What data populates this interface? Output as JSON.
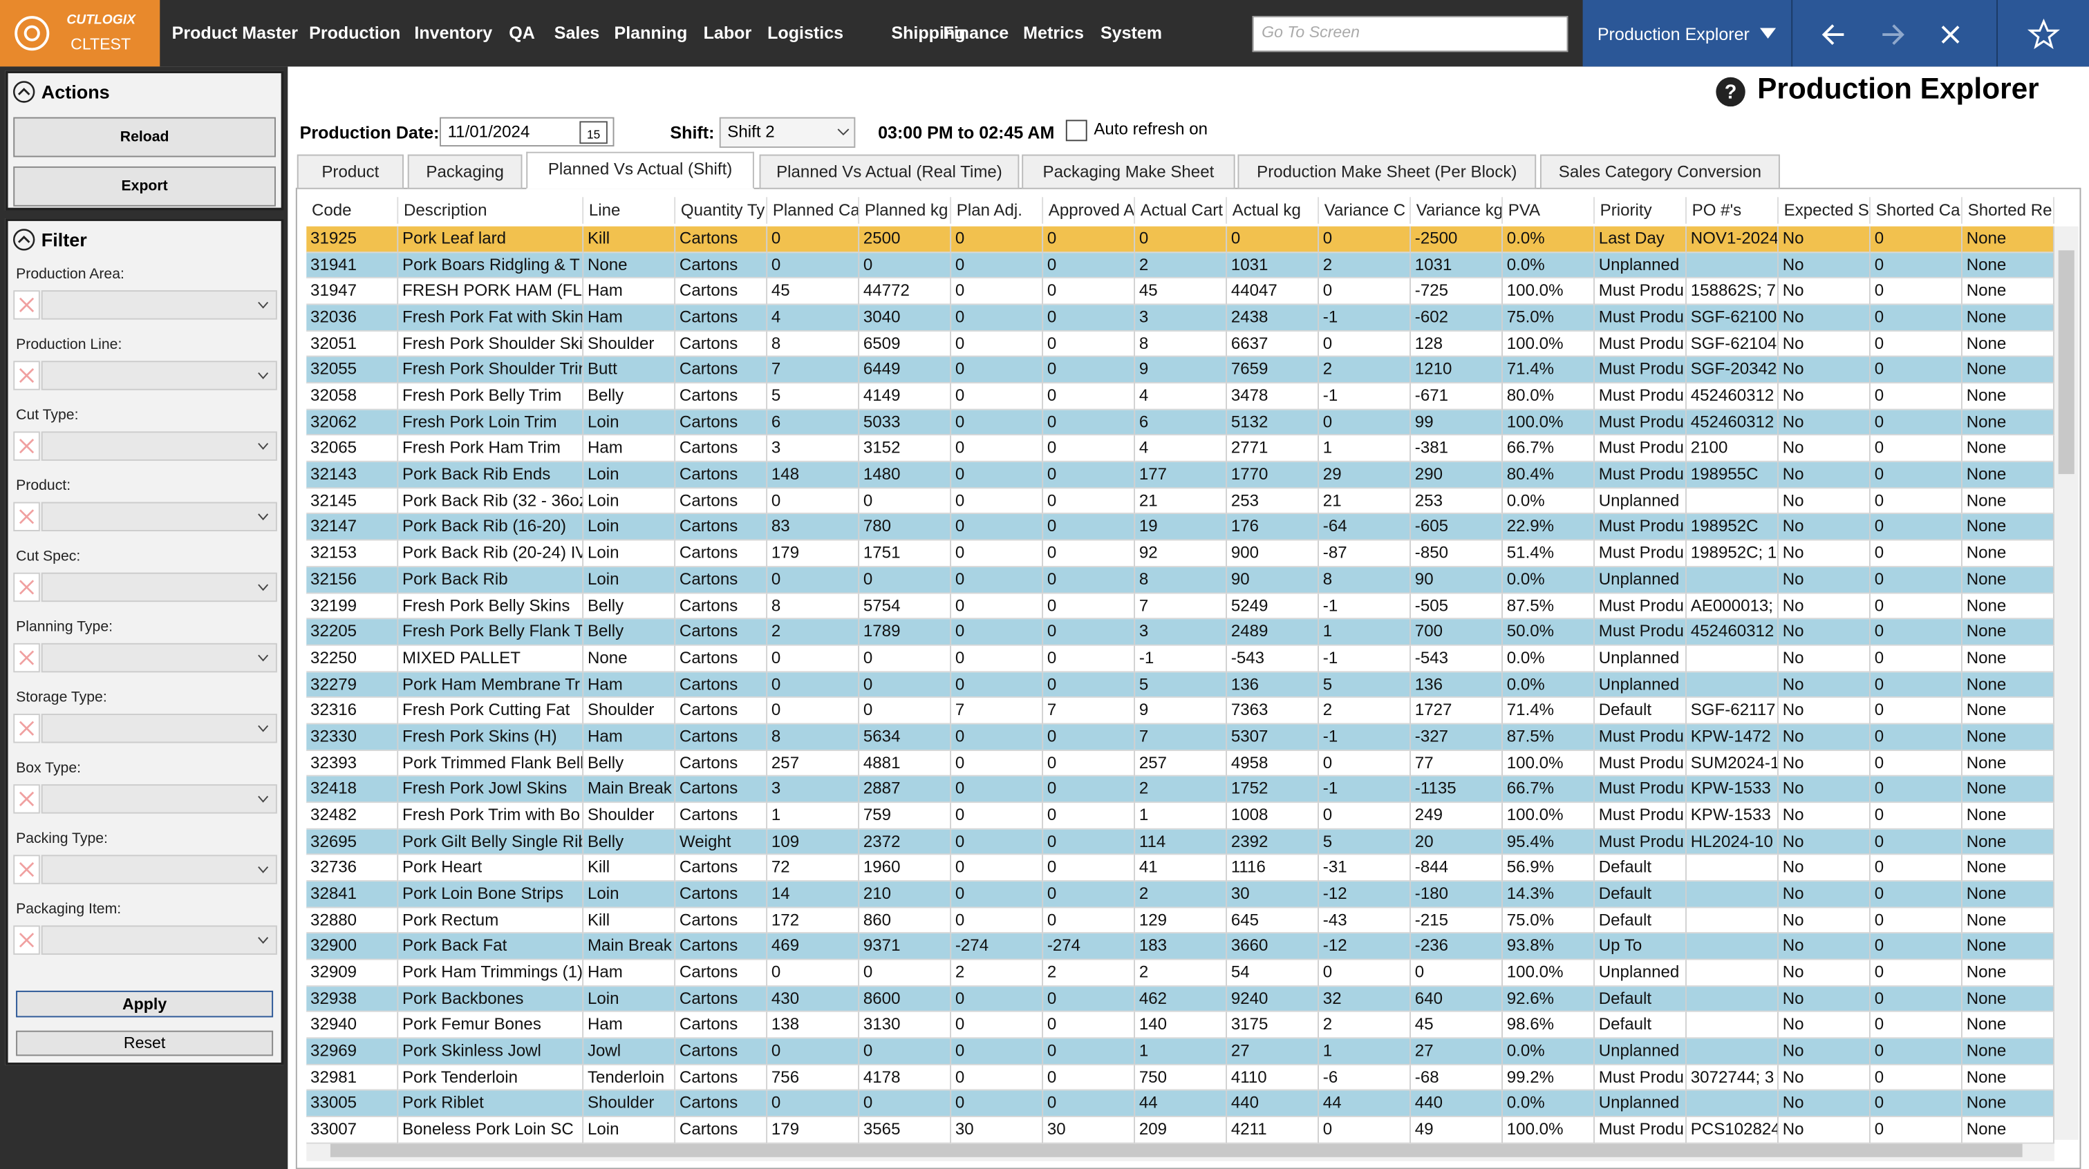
{
  "header": {
    "logo_brand": "CUTLOGIX",
    "logo_env": "CLTEST",
    "menu": [
      "Product Master",
      "Production",
      "Inventory",
      "QA",
      "Sales",
      "Planning",
      "Labor",
      "Logistics",
      "Shipping",
      "Finance",
      "Metrics",
      "System"
    ],
    "search_placeholder": "Go To Screen",
    "screen_select": "Production Explorer"
  },
  "actions": {
    "title": "Actions",
    "buttons": [
      "Reload",
      "Export"
    ]
  },
  "filter": {
    "title": "Filter",
    "fields": [
      "Production Area:",
      "Production Line:",
      "Cut Type:",
      "Product:",
      "Cut Spec:",
      "Planning Type:",
      "Storage Type:",
      "Box Type:",
      "Packing Type:",
      "Packaging Item:"
    ],
    "apply": "Apply",
    "reset": "Reset"
  },
  "page": {
    "title": "Production Explorer",
    "date_label": "Production Date:",
    "date_value": "11/01/2024",
    "calendar_day": "15",
    "shift_label": "Shift:",
    "shift_value": "Shift 2",
    "time_range": "03:00 PM to 02:45 AM",
    "auto_refresh": "Auto refresh on"
  },
  "tabs": {
    "items": [
      "Product",
      "Packaging",
      "Planned Vs Actual (Shift)",
      "Planned Vs Actual (Real Time)",
      "Packaging Make Sheet",
      "Production Make Sheet (Per Block)",
      "Sales Category Conversion"
    ],
    "selected": 2
  },
  "table": {
    "columns": [
      "Code",
      "Description",
      "Line",
      "Quantity Ty",
      "Planned Ca",
      "Planned kg",
      "Plan Adj.",
      "Approved A",
      "Actual Cart",
      "Actual kg",
      "Variance C",
      "Variance kg",
      "PVA",
      "Priority",
      "PO #'s",
      "Expected S",
      "Shorted Ca",
      "Shorted Re"
    ],
    "highlight_row": 0,
    "rows": [
      [
        "31925",
        "Pork Leaf lard",
        "Kill",
        "Cartons",
        "0",
        "2500",
        "0",
        "0",
        "0",
        "0",
        "0",
        "-2500",
        "0.0%",
        "Last Day",
        "NOV1-2024",
        "No",
        "0",
        "None"
      ],
      [
        "31941",
        "Pork Boars Ridgling & T",
        "None",
        "Cartons",
        "0",
        "0",
        "0",
        "0",
        "2",
        "1031",
        "2",
        "1031",
        "0.0%",
        "Unplanned",
        null,
        "No",
        "0",
        "None"
      ],
      [
        "31947",
        "FRESH PORK HAM (FLAI",
        "Ham",
        "Cartons",
        "45",
        "44772",
        "0",
        "0",
        "45",
        "44047",
        "0",
        "-725",
        "100.0%",
        "Must Produ",
        "158862S; 7",
        "No",
        "0",
        "None"
      ],
      [
        "32036",
        "Fresh Pork Fat with Skin",
        "Ham",
        "Cartons",
        "4",
        "3040",
        "0",
        "0",
        "3",
        "2438",
        "-1",
        "-602",
        "75.0%",
        "Must Produ",
        "SGF-62100",
        "No",
        "0",
        "None"
      ],
      [
        "32051",
        "Fresh Pork Shoulder Ski",
        "Shoulder",
        "Cartons",
        "8",
        "6509",
        "0",
        "0",
        "8",
        "6637",
        "0",
        "128",
        "100.0%",
        "Must Produ",
        "SGF-62104",
        "No",
        "0",
        "None"
      ],
      [
        "32055",
        "Fresh Pork Shoulder Trin",
        "Butt",
        "Cartons",
        "7",
        "6449",
        "0",
        "0",
        "9",
        "7659",
        "2",
        "1210",
        "71.4%",
        "Must Produ",
        "SGF-20342",
        "No",
        "0",
        "None"
      ],
      [
        "32058",
        "Fresh Pork Belly Trim",
        "Belly",
        "Cartons",
        "5",
        "4149",
        "0",
        "0",
        "4",
        "3478",
        "-1",
        "-671",
        "80.0%",
        "Must Produ",
        "452460312",
        "No",
        "0",
        "None"
      ],
      [
        "32062",
        "Fresh Pork Loin Trim",
        "Loin",
        "Cartons",
        "6",
        "5033",
        "0",
        "0",
        "6",
        "5132",
        "0",
        "99",
        "100.0%",
        "Must Produ",
        "452460312",
        "No",
        "0",
        "None"
      ],
      [
        "32065",
        "Fresh Pork Ham Trim",
        "Ham",
        "Cartons",
        "3",
        "3152",
        "0",
        "0",
        "4",
        "2771",
        "1",
        "-381",
        "66.7%",
        "Must Produ",
        "2100",
        "No",
        "0",
        "None"
      ],
      [
        "32143",
        "Pork Back Rib Ends",
        "Loin",
        "Cartons",
        "148",
        "1480",
        "0",
        "0",
        "177",
        "1770",
        "29",
        "290",
        "80.4%",
        "Must Produ",
        "198955C",
        "No",
        "0",
        "None"
      ],
      [
        "32145",
        "Pork Back Rib (32 - 36oz",
        "Loin",
        "Cartons",
        "0",
        "0",
        "0",
        "0",
        "21",
        "253",
        "21",
        "253",
        "0.0%",
        "Unplanned",
        null,
        "No",
        "0",
        "None"
      ],
      [
        "32147",
        "Pork Back Rib (16-20)",
        "Loin",
        "Cartons",
        "83",
        "780",
        "0",
        "0",
        "19",
        "176",
        "-64",
        "-605",
        "22.9%",
        "Must Produ",
        "198952C",
        "No",
        "0",
        "None"
      ],
      [
        "32153",
        "Pork Back Rib (20-24) IV",
        "Loin",
        "Cartons",
        "179",
        "1751",
        "0",
        "0",
        "92",
        "900",
        "-87",
        "-850",
        "51.4%",
        "Must Produ",
        "198952C; 1",
        "No",
        "0",
        "None"
      ],
      [
        "32156",
        "Pork Back Rib",
        "Loin",
        "Cartons",
        "0",
        "0",
        "0",
        "0",
        "8",
        "90",
        "8",
        "90",
        "0.0%",
        "Unplanned",
        null,
        "No",
        "0",
        "None"
      ],
      [
        "32199",
        "Fresh Pork Belly Skins",
        "Belly",
        "Cartons",
        "8",
        "5754",
        "0",
        "0",
        "7",
        "5249",
        "-1",
        "-505",
        "87.5%",
        "Must Produ",
        "AE000013;",
        "No",
        "0",
        "None"
      ],
      [
        "32205",
        "Fresh Pork Belly Flank Tr",
        "Belly",
        "Cartons",
        "2",
        "1789",
        "0",
        "0",
        "3",
        "2489",
        "1",
        "700",
        "50.0%",
        "Must Produ",
        "452460312",
        "No",
        "0",
        "None"
      ],
      [
        "32250",
        "MIXED PALLET",
        "None",
        "Cartons",
        "0",
        "0",
        "0",
        "0",
        "-1",
        "-543",
        "-1",
        "-543",
        "0.0%",
        "Unplanned",
        null,
        "No",
        "0",
        "None"
      ],
      [
        "32279",
        "Pork Ham Membrane Tr",
        "Ham",
        "Cartons",
        "0",
        "0",
        "0",
        "0",
        "5",
        "136",
        "5",
        "136",
        "0.0%",
        "Unplanned",
        null,
        "No",
        "0",
        "None"
      ],
      [
        "32316",
        "Fresh Pork Cutting Fat",
        "Shoulder",
        "Cartons",
        "0",
        "0",
        "7",
        "7",
        "9",
        "7363",
        "2",
        "1727",
        "71.4%",
        "Default",
        "SGF-62117",
        "No",
        "0",
        "None"
      ],
      [
        "32330",
        "Fresh Pork Skins (H)",
        "Ham",
        "Cartons",
        "8",
        "5634",
        "0",
        "0",
        "7",
        "5307",
        "-1",
        "-327",
        "87.5%",
        "Must Produ",
        "KPW-1472",
        "No",
        "0",
        "None"
      ],
      [
        "32393",
        "Pork Trimmed Flank Bell",
        "Belly",
        "Cartons",
        "257",
        "4881",
        "0",
        "0",
        "257",
        "4958",
        "0",
        "77",
        "100.0%",
        "Must Produ",
        "SUM2024-1",
        "No",
        "0",
        "None"
      ],
      [
        "32418",
        "Fresh Pork Jowl Skins",
        "Main Break",
        "Cartons",
        "3",
        "2887",
        "0",
        "0",
        "2",
        "1752",
        "-1",
        "-1135",
        "66.7%",
        "Must Produ",
        "KPW-1533",
        "No",
        "0",
        "None"
      ],
      [
        "32482",
        "Fresh Pork Trim with Bo",
        "Shoulder",
        "Cartons",
        "1",
        "759",
        "0",
        "0",
        "1",
        "1008",
        "0",
        "249",
        "100.0%",
        "Must Produ",
        "KPW-1533",
        "No",
        "0",
        "None"
      ],
      [
        "32695",
        "Pork Gilt Belly Single Rib",
        "Belly",
        "Weight",
        "109",
        "2372",
        "0",
        "0",
        "114",
        "2392",
        "5",
        "20",
        "95.4%",
        "Must Produ",
        "HL2024-10",
        "No",
        "0",
        "None"
      ],
      [
        "32736",
        "Pork Heart",
        "Kill",
        "Cartons",
        "72",
        "1960",
        "0",
        "0",
        "41",
        "1116",
        "-31",
        "-844",
        "56.9%",
        "Default",
        null,
        "No",
        "0",
        "None"
      ],
      [
        "32841",
        "Pork Loin Bone Strips",
        "Loin",
        "Cartons",
        "14",
        "210",
        "0",
        "0",
        "2",
        "30",
        "-12",
        "-180",
        "14.3%",
        "Default",
        null,
        "No",
        "0",
        "None"
      ],
      [
        "32880",
        "Pork Rectum",
        "Kill",
        "Cartons",
        "172",
        "860",
        "0",
        "0",
        "129",
        "645",
        "-43",
        "-215",
        "75.0%",
        "Default",
        null,
        "No",
        "0",
        "None"
      ],
      [
        "32900",
        "Pork Back Fat",
        "Main Break",
        "Cartons",
        "469",
        "9371",
        "-274",
        "-274",
        "183",
        "3660",
        "-12",
        "-236",
        "93.8%",
        "Up To",
        null,
        "No",
        "0",
        "None"
      ],
      [
        "32909",
        "Pork Ham Trimmings (1)",
        "Ham",
        "Cartons",
        "0",
        "0",
        "2",
        "2",
        "2",
        "54",
        "0",
        "0",
        "100.0%",
        "Unplanned",
        null,
        "No",
        "0",
        "None"
      ],
      [
        "32938",
        "Pork Backbones",
        "Loin",
        "Cartons",
        "430",
        "8600",
        "0",
        "0",
        "462",
        "9240",
        "32",
        "640",
        "92.6%",
        "Default",
        null,
        "No",
        "0",
        "None"
      ],
      [
        "32940",
        "Pork Femur Bones",
        "Ham",
        "Cartons",
        "138",
        "3130",
        "0",
        "0",
        "140",
        "3175",
        "2",
        "45",
        "98.6%",
        "Default",
        null,
        "No",
        "0",
        "None"
      ],
      [
        "32969",
        "Pork Skinless Jowl",
        "Jowl",
        "Cartons",
        "0",
        "0",
        "0",
        "0",
        "1",
        "27",
        "1",
        "27",
        "0.0%",
        "Unplanned",
        null,
        "No",
        "0",
        "None"
      ],
      [
        "32981",
        "Pork Tenderloin",
        "Tenderloin",
        "Cartons",
        "756",
        "4178",
        "0",
        "0",
        "750",
        "4110",
        "-6",
        "-68",
        "99.2%",
        "Must Produ",
        "3072744; 3",
        "No",
        "0",
        "None"
      ],
      [
        "33005",
        "Pork Riblet",
        "Shoulder",
        "Cartons",
        "0",
        "0",
        "0",
        "0",
        "44",
        "440",
        "44",
        "440",
        "0.0%",
        "Unplanned",
        null,
        "No",
        "0",
        "None"
      ],
      [
        "33007",
        "Boneless Pork Loin SC",
        "Loin",
        "Cartons",
        "179",
        "3565",
        "30",
        "30",
        "209",
        "4211",
        "0",
        "49",
        "100.0%",
        "Must Produ",
        "PCS102824",
        "No",
        "0",
        "None"
      ]
    ]
  }
}
